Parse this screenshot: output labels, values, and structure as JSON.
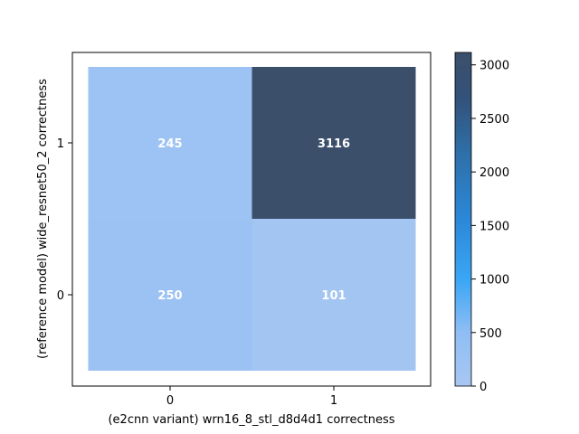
{
  "chart_data": {
    "type": "heatmap",
    "title": "",
    "xlabel": "(e2cnn variant) wrn16_8_stl_d8d4d1 correctness",
    "ylabel": "(reference model) wide_resnet50_2 correctness",
    "x_categories": [
      "0",
      "1"
    ],
    "y_categories": [
      "0",
      "1"
    ],
    "cells": [
      {
        "x": "0",
        "y": "1",
        "value": 245,
        "label": "245"
      },
      {
        "x": "1",
        "y": "1",
        "value": 3116,
        "label": "3116"
      },
      {
        "x": "0",
        "y": "0",
        "value": 250,
        "label": "250"
      },
      {
        "x": "1",
        "y": "0",
        "value": 101,
        "label": "101"
      }
    ],
    "colorbar": {
      "range": [
        0,
        3116
      ],
      "ticks": [
        0,
        500,
        1000,
        1500,
        2000,
        2500,
        3000
      ],
      "tick_labels": [
        "0",
        "500",
        "1000",
        "1500",
        "2000",
        "2500",
        "3000"
      ],
      "colors": [
        "#a8c7f2",
        "#8fbef4",
        "#3aa6f5",
        "#2b88d8",
        "#2e6fa8",
        "#33527a",
        "#3b4f6b"
      ]
    },
    "grid": false,
    "legend": "colorbar-right"
  }
}
